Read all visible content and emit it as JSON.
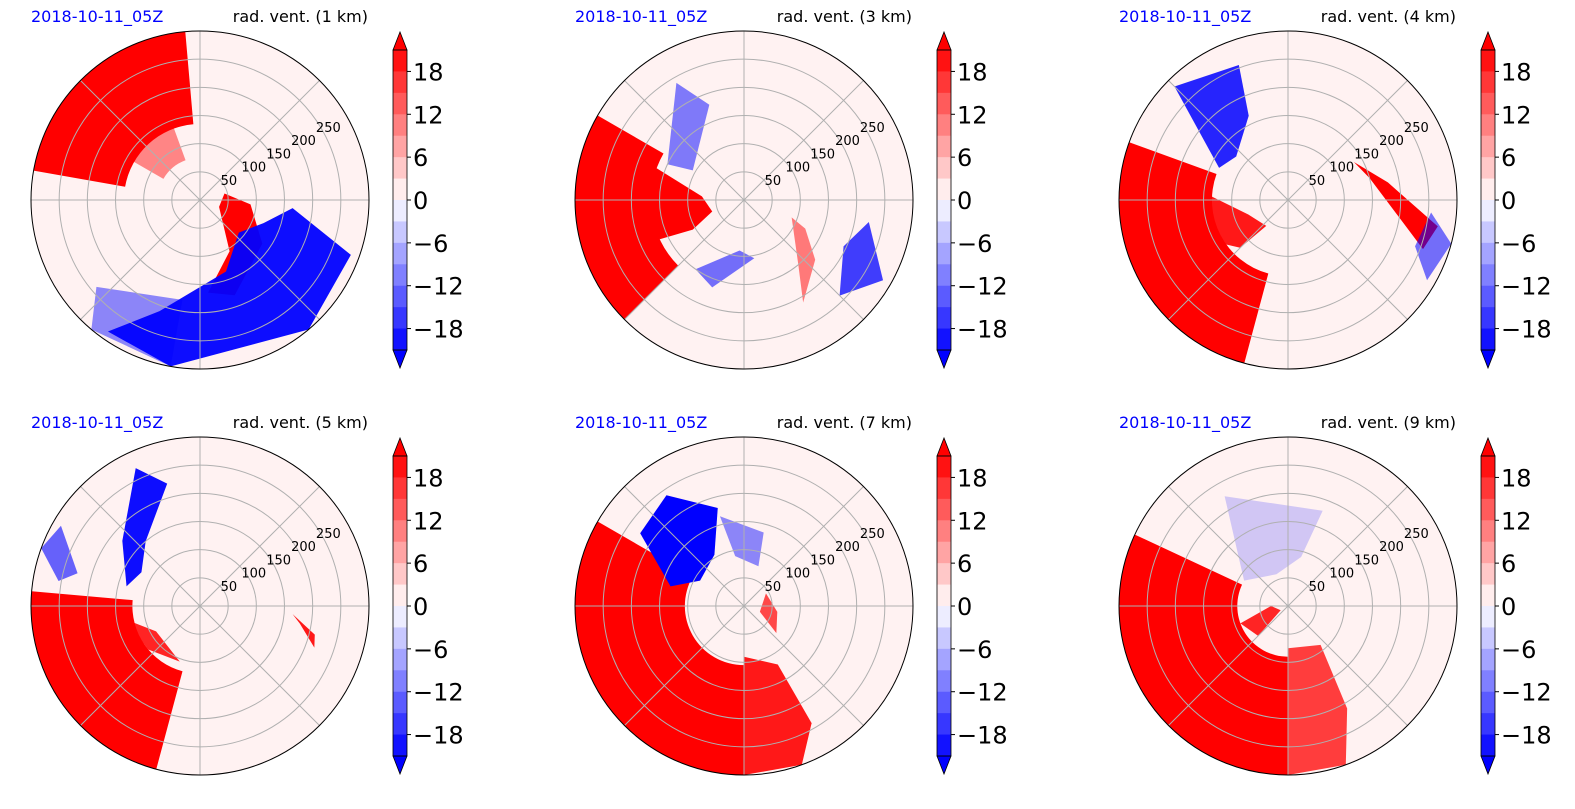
{
  "colors": {
    "positive": "#ff0000",
    "negative": "#0000ff",
    "date_text": "#0000ff",
    "title_text": "#000000",
    "grid": "#b0b0b0"
  },
  "chart_data": [
    {
      "type": "heatmap",
      "projection": "polar",
      "date_label": "2018-10-11_05Z",
      "title": "rad. vent. (1 km)",
      "radial_ticks": [
        "50",
        "100",
        "150",
        "200",
        "250"
      ],
      "radial_range": [
        0,
        300
      ],
      "colorbar": {
        "ticks": [
          "18",
          "12",
          "6",
          "0",
          "−6",
          "−12",
          "−18"
        ],
        "range": [
          -21,
          21
        ],
        "extend": "both",
        "colormap": "bwr"
      },
      "regions": [
        {
          "sign": "positive",
          "description": "northwest quadrant, outer ring"
        },
        {
          "sign": "positive",
          "description": "near center, east-southeast"
        },
        {
          "sign": "negative",
          "description": "southeast quadrant"
        }
      ]
    },
    {
      "type": "heatmap",
      "projection": "polar",
      "date_label": "2018-10-11_05Z",
      "title": "rad. vent. (3 km)",
      "radial_ticks": [
        "50",
        "100",
        "150",
        "200",
        "250"
      ],
      "radial_range": [
        0,
        300
      ],
      "colorbar": {
        "ticks": [
          "18",
          "12",
          "6",
          "0",
          "−6",
          "−12",
          "−18"
        ],
        "range": [
          -21,
          21
        ],
        "extend": "both",
        "colormap": "bwr"
      },
      "regions": [
        {
          "sign": "positive",
          "description": "west, outer ring"
        },
        {
          "sign": "negative",
          "description": "scattered streaks, east and south"
        }
      ]
    },
    {
      "type": "heatmap",
      "projection": "polar",
      "date_label": "2018-10-11_05Z",
      "title": "rad. vent. (4 km)",
      "radial_ticks": [
        "50",
        "100",
        "150",
        "200",
        "250"
      ],
      "radial_range": [
        0,
        300
      ],
      "colorbar": {
        "ticks": [
          "18",
          "12",
          "6",
          "0",
          "−6",
          "−12",
          "−18"
        ],
        "range": [
          -21,
          21
        ],
        "extend": "both",
        "colormap": "bwr"
      },
      "regions": [
        {
          "sign": "positive",
          "description": "west and southwest"
        },
        {
          "sign": "negative",
          "description": "northwest"
        },
        {
          "sign": "positive",
          "description": "narrow band east"
        }
      ]
    },
    {
      "type": "heatmap",
      "projection": "polar",
      "date_label": "2018-10-11_05Z",
      "title": "rad. vent. (5 km)",
      "radial_ticks": [
        "50",
        "100",
        "150",
        "200",
        "250"
      ],
      "radial_range": [
        0,
        300
      ],
      "colorbar": {
        "ticks": [
          "18",
          "12",
          "6",
          "0",
          "−6",
          "−12",
          "−18"
        ],
        "range": [
          -21,
          21
        ],
        "extend": "both",
        "colormap": "bwr"
      },
      "regions": [
        {
          "sign": "positive",
          "description": "southwest"
        },
        {
          "sign": "negative",
          "description": "northwest band"
        }
      ]
    },
    {
      "type": "heatmap",
      "projection": "polar",
      "date_label": "2018-10-11_05Z",
      "title": "rad. vent. (7 km)",
      "radial_ticks": [
        "50",
        "100",
        "150",
        "200",
        "250"
      ],
      "radial_range": [
        0,
        300
      ],
      "colorbar": {
        "ticks": [
          "18",
          "12",
          "6",
          "0",
          "−6",
          "−12",
          "−18"
        ],
        "range": [
          -21,
          21
        ],
        "extend": "both",
        "colormap": "bwr"
      },
      "regions": [
        {
          "sign": "positive",
          "description": "southwest and south"
        },
        {
          "sign": "negative",
          "description": "northwest near center"
        }
      ]
    },
    {
      "type": "heatmap",
      "projection": "polar",
      "date_label": "2018-10-11_05Z",
      "title": "rad. vent. (9 km)",
      "radial_ticks": [
        "50",
        "100",
        "150",
        "200",
        "250"
      ],
      "radial_range": [
        0,
        300
      ],
      "colorbar": {
        "ticks": [
          "18",
          "12",
          "6",
          "0",
          "−6",
          "−12",
          "−18"
        ],
        "range": [
          -21,
          21
        ],
        "extend": "both",
        "colormap": "bwr"
      },
      "regions": [
        {
          "sign": "positive",
          "description": "west and southwest"
        },
        {
          "sign": "negative",
          "description": "faint, north"
        }
      ]
    }
  ]
}
